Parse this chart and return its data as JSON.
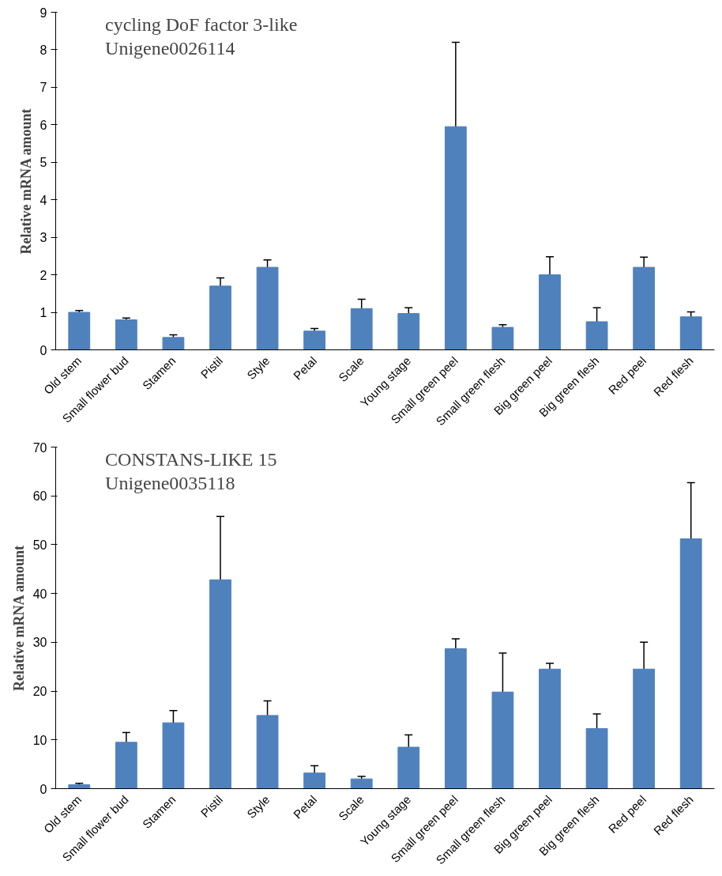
{
  "chart_data": [
    {
      "type": "bar",
      "title": "cycling DoF factor 3-like",
      "subtitle": "Unigene0026114",
      "ylabel": "Relative mRNA amount",
      "categories": [
        "Old stem",
        "Small flower bud",
        "Stamen",
        "Pistil",
        "Style",
        "Petal",
        "Scale",
        "Young stage",
        "Small green peel",
        "Small green flesh",
        "Big green peel",
        "Big green flesh",
        "Red peel",
        "Red flesh"
      ],
      "values": [
        1.0,
        0.8,
        0.33,
        1.7,
        2.2,
        0.5,
        1.1,
        0.97,
        5.95,
        0.6,
        2.0,
        0.75,
        2.2,
        0.88
      ],
      "errors": [
        0.05,
        0.05,
        0.07,
        0.22,
        0.2,
        0.07,
        0.25,
        0.15,
        2.25,
        0.07,
        0.48,
        0.37,
        0.27,
        0.13
      ],
      "color": "#4f81bd",
      "ylim": [
        0,
        9
      ],
      "yticks": [
        0,
        1,
        2,
        3,
        4,
        5,
        6,
        7,
        8,
        9
      ],
      "grid": false
    },
    {
      "type": "bar",
      "title": "CONSTANS-LIKE 15",
      "subtitle": "Unigene0035118",
      "ylabel": "Relative mRNA amount",
      "categories": [
        "Old stem",
        "Small flower bud",
        "Stamen",
        "Pistil",
        "Style",
        "Petal",
        "Scale",
        "Young stage",
        "Small green peel",
        "Small green flesh",
        "Big green peel",
        "Big green flesh",
        "Red peel",
        "Red flesh"
      ],
      "values": [
        0.8,
        9.5,
        13.5,
        42.8,
        15,
        3.2,
        2,
        8.5,
        28.7,
        19.8,
        24.5,
        12.3,
        24.5,
        51.2
      ],
      "errors": [
        0.3,
        2,
        2.5,
        13,
        3,
        1.5,
        0.5,
        2.5,
        2,
        8,
        1.2,
        3,
        5.5,
        11.5
      ],
      "color": "#4f81bd",
      "ylim": [
        0,
        70
      ],
      "yticks": [
        0,
        10,
        20,
        30,
        40,
        50,
        60,
        70
      ],
      "grid": false
    }
  ]
}
